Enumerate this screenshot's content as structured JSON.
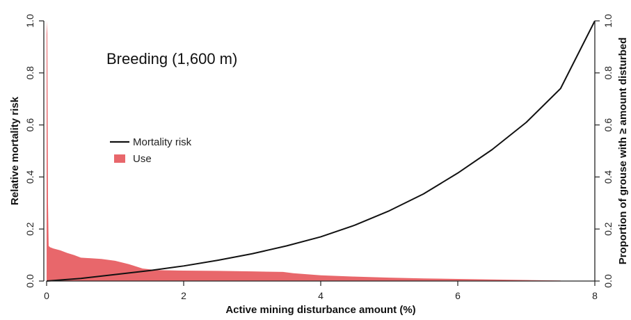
{
  "chart_data": {
    "type": "area",
    "title": "",
    "annotation": "Breeding (1,600 m)",
    "xlabel": "Active mining disturbance amount (%)",
    "ylabel_left": "Relative mortality risk",
    "ylabel_right": "Proportion of grouse with ≥ amount disturbed",
    "xlim": [
      0,
      8
    ],
    "ylim_left": [
      0,
      1
    ],
    "ylim_right": [
      0,
      1
    ],
    "x_ticks": [
      "0",
      "2",
      "4",
      "6",
      "8"
    ],
    "y_ticks_left": [
      "0.0",
      "0.2",
      "0.4",
      "0.6",
      "0.8",
      "1.0"
    ],
    "y_ticks_right": [
      "0.0",
      "0.2",
      "0.4",
      "0.6",
      "0.8",
      "1.0"
    ],
    "grid": false,
    "legend_position": "center-left",
    "series": [
      {
        "name": "Mortality risk",
        "kind": "line",
        "axis": "left",
        "color": "#111111",
        "x": [
          0,
          0.5,
          1,
          1.5,
          2,
          2.5,
          3,
          3.5,
          4,
          4.5,
          5,
          5.5,
          6,
          6.5,
          7,
          7.5,
          8
        ],
        "y": [
          0.0,
          0.01,
          0.025,
          0.04,
          0.058,
          0.08,
          0.105,
          0.135,
          0.17,
          0.215,
          0.27,
          0.335,
          0.415,
          0.505,
          0.61,
          0.74,
          1.0
        ]
      },
      {
        "name": "Use",
        "kind": "area",
        "axis": "right",
        "color": "#e8676b",
        "x": [
          0,
          0.01,
          0.02,
          0.03,
          0.05,
          0.1,
          0.2,
          0.3,
          0.4,
          0.5,
          0.8,
          1.0,
          1.2,
          1.4,
          1.6,
          2.0,
          2.5,
          3.0,
          3.45,
          3.6,
          4.0,
          4.5,
          5.0,
          5.5,
          6.0,
          6.5,
          7.0,
          7.5
        ],
        "y": [
          1.0,
          0.95,
          0.3,
          0.135,
          0.13,
          0.125,
          0.118,
          0.108,
          0.1,
          0.09,
          0.085,
          0.078,
          0.065,
          0.048,
          0.042,
          0.04,
          0.039,
          0.037,
          0.035,
          0.03,
          0.022,
          0.017,
          0.013,
          0.01,
          0.008,
          0.006,
          0.004,
          0.002
        ]
      }
    ]
  }
}
